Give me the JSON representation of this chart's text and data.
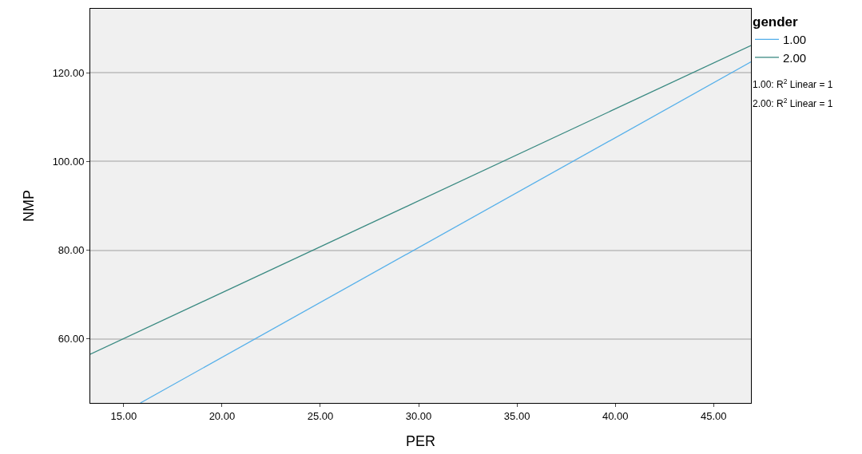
{
  "chart_data": {
    "type": "line",
    "xlabel": "PER",
    "ylabel": "NMP",
    "legend_title": "gender",
    "series": [
      {
        "name": "1.00",
        "color": "#56b0ea",
        "x": [
          15.85,
          46.9
        ],
        "values": [
          45.5,
          122.5
        ]
      },
      {
        "name": "2.00",
        "color": "#3a8a82",
        "x": [
          13.3,
          46.9
        ],
        "values": [
          56.5,
          126.2
        ]
      }
    ],
    "annotations": [
      "1.00: R$^{2}$ Linear = 1",
      "2.00: R$^{2}$ Linear = 1"
    ],
    "xlim": [
      13.3,
      46.9
    ],
    "xticks": [
      {
        "value": 15,
        "label": "15.00"
      },
      {
        "value": 20,
        "label": "20.00"
      },
      {
        "value": 25,
        "label": "25.00"
      },
      {
        "value": 30,
        "label": "30.00"
      },
      {
        "value": 35,
        "label": "35.00"
      },
      {
        "value": 40,
        "label": "40.00"
      },
      {
        "value": 45,
        "label": "45.00"
      }
    ],
    "ylim": [
      45.5,
      134.5
    ],
    "yticks": [
      {
        "value": 60,
        "label": "60.00"
      },
      {
        "value": 80,
        "label": "80.00"
      },
      {
        "value": 100,
        "label": "100.00"
      },
      {
        "value": 120,
        "label": "120.00"
      }
    ],
    "grid": "y",
    "legend": "top right",
    "marker": "none",
    "line_style": "solid"
  }
}
